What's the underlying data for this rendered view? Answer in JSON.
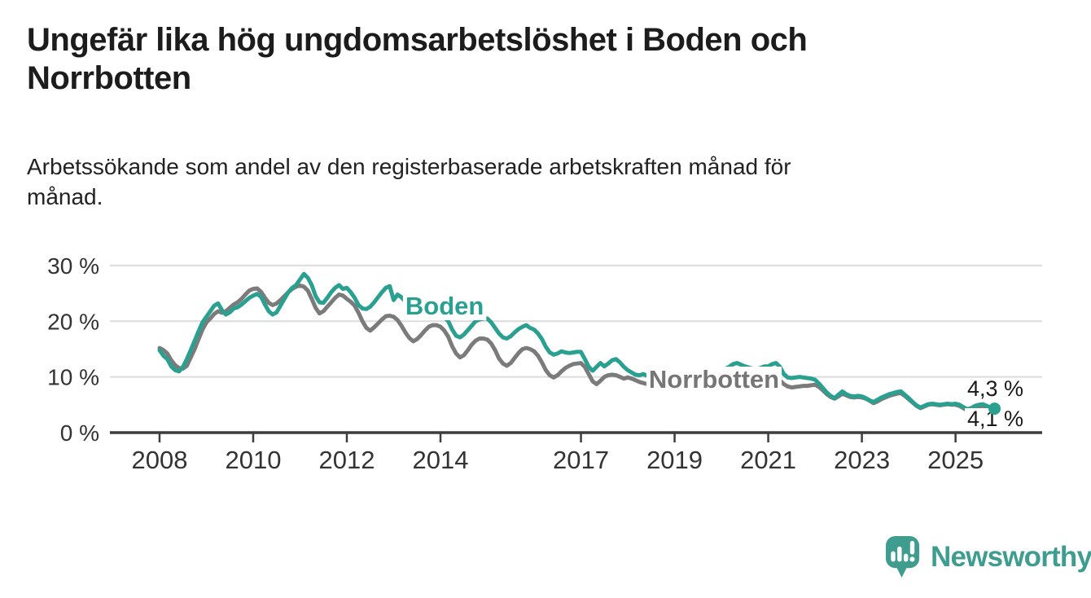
{
  "header": {
    "title": "Ungefär lika hög ungdomsarbetslöshet i Boden och\nNorrbotten",
    "subtitle": "Arbetssökande som andel av den registerbaserade arbetskraften månad för\nmånad."
  },
  "footer": {
    "brand": "Newsworthy",
    "brand_color": "#3e9d8f"
  },
  "chart_data": {
    "type": "line",
    "title": "Ungefär lika hög ungdomsarbetslöshet i Boden och Norrbotten",
    "xlabel": "",
    "ylabel": "Arbetssökande som andel av den registerbaserade arbetskraften (%)",
    "x_unit": "månad (decimalår)",
    "xlim": [
      2006.94,
      2026.85
    ],
    "ylim": [
      0,
      31.6
    ],
    "grid": "horizontal",
    "legend_position": "inline-labels",
    "y_ticks": [
      {
        "value": 30,
        "label": "30 %"
      },
      {
        "value": 20,
        "label": "20 %"
      },
      {
        "value": 10,
        "label": "10 %"
      },
      {
        "value": 0,
        "label": "0 %"
      }
    ],
    "x_ticks": [
      {
        "value": 2008,
        "label": "2008"
      },
      {
        "value": 2010,
        "label": "2010"
      },
      {
        "value": 2012,
        "label": "2012"
      },
      {
        "value": 2014,
        "label": "2014"
      },
      {
        "value": 2017,
        "label": "2017"
      },
      {
        "value": 2019,
        "label": "2019"
      },
      {
        "value": 2021,
        "label": "2021"
      },
      {
        "value": 2023,
        "label": "2023"
      },
      {
        "value": 2025,
        "label": "2025"
      }
    ],
    "style": {
      "grid_color": "#dcdcdc",
      "axis_color": "#3d3d3d",
      "axis_text_color": "#333333",
      "line_width": 5,
      "end_dot_radius": 7.5
    },
    "series": [
      {
        "name": "Norrbotten",
        "color": "#7b7b7b",
        "start_year": 2008,
        "points_per_year": 12,
        "last_value_label": "4,1 %",
        "values": [
          15.2,
          14.8,
          14.2,
          13.0,
          12.1,
          11.6,
          11.5,
          12.0,
          13.5,
          15.0,
          16.8,
          18.5,
          19.8,
          20.5,
          21.3,
          21.8,
          21.5,
          21.8,
          22.4,
          23.0,
          23.4,
          24.0,
          24.8,
          25.5,
          25.8,
          25.9,
          25.3,
          24.2,
          23.3,
          22.9,
          23.2,
          23.8,
          24.5,
          25.2,
          25.8,
          26.2,
          26.4,
          26.2,
          25.5,
          24.0,
          22.4,
          21.4,
          21.8,
          22.6,
          23.4,
          24.2,
          24.8,
          24.6,
          24.0,
          23.5,
          22.8,
          21.5,
          20.0,
          18.8,
          18.3,
          18.9,
          19.6,
          20.3,
          20.9,
          21.0,
          20.8,
          20.2,
          19.2,
          18.0,
          17.0,
          16.4,
          16.8,
          17.5,
          18.3,
          19.0,
          19.3,
          19.3,
          19.0,
          18.3,
          17.2,
          15.5,
          14.2,
          13.5,
          13.9,
          14.8,
          15.8,
          16.5,
          16.9,
          16.9,
          16.7,
          16.0,
          14.8,
          13.3,
          12.4,
          12.0,
          12.5,
          13.4,
          14.3,
          15.0,
          15.2,
          15.0,
          14.6,
          13.8,
          12.6,
          11.2,
          10.3,
          9.9,
          10.3,
          11.0,
          11.6,
          12.0,
          12.3,
          12.4,
          12.5,
          11.8,
          10.5,
          9.2,
          8.7,
          9.3,
          10.0,
          10.3,
          10.4,
          10.3,
          10.0,
          9.7,
          9.9,
          9.7,
          9.4,
          9.1,
          8.9,
          8.7,
          8.8,
          9.0,
          9.1,
          9.0,
          8.9,
          8.8,
          8.8,
          8.9,
          8.8,
          8.6,
          8.5,
          8.4,
          8.5,
          8.6,
          8.7,
          8.8,
          8.9,
          9.0,
          9.2,
          9.4,
          9.8,
          10.4,
          10.6,
          10.4,
          10.1,
          9.9,
          9.7,
          9.6,
          9.7,
          9.9,
          10.0,
          10.2,
          10.0,
          9.4,
          8.7,
          8.3,
          8.1,
          8.2,
          8.3,
          8.4,
          8.4,
          8.5,
          8.6,
          8.2,
          7.6,
          6.9,
          6.4,
          6.1,
          6.5,
          7.0,
          6.7,
          6.4,
          6.3,
          6.4,
          6.3,
          6.1,
          5.7,
          5.3,
          5.6,
          6.0,
          6.3,
          6.6,
          6.8,
          7.0,
          7.1,
          6.6,
          6.0,
          5.4,
          4.8,
          4.4,
          4.7,
          5.0,
          5.1,
          5.0,
          4.9,
          5.0,
          5.1,
          5.0,
          5.0,
          4.8,
          4.4,
          4.0,
          4.2,
          4.5,
          4.7,
          4.8,
          4.5,
          4.2,
          4.1
        ]
      },
      {
        "name": "Boden",
        "color": "#2aa091",
        "start_year": 2008,
        "points_per_year": 12,
        "last_value_label": "4,3 %",
        "values": [
          14.8,
          13.8,
          13.2,
          11.9,
          11.2,
          11.0,
          11.8,
          13.2,
          14.8,
          16.5,
          18.2,
          19.8,
          20.8,
          21.8,
          22.8,
          23.2,
          22.0,
          21.2,
          21.6,
          22.3,
          22.5,
          23.0,
          23.6,
          24.2,
          24.6,
          24.9,
          24.4,
          23.0,
          21.8,
          21.2,
          21.6,
          22.8,
          24.0,
          25.2,
          26.0,
          26.5,
          27.5,
          28.5,
          27.8,
          26.5,
          24.5,
          23.4,
          23.3,
          24.2,
          25.2,
          26.0,
          26.5,
          25.8,
          26.0,
          25.2,
          24.2,
          22.9,
          22.3,
          22.2,
          22.6,
          23.4,
          24.3,
          25.2,
          26.0,
          26.3,
          23.8,
          24.8,
          24.3,
          23.5,
          22.5,
          21.8,
          21.5,
          21.8,
          22.2,
          22.0,
          21.5,
          21.0,
          21.0,
          20.7,
          20.0,
          18.5,
          17.4,
          17.1,
          17.6,
          18.4,
          19.2,
          20.0,
          20.3,
          20.5,
          20.5,
          19.8,
          18.8,
          17.8,
          17.1,
          16.9,
          17.3,
          18.0,
          18.6,
          19.0,
          19.3,
          18.8,
          18.5,
          17.8,
          16.8,
          15.4,
          14.4,
          14.0,
          14.2,
          14.6,
          14.4,
          14.3,
          14.4,
          14.5,
          14.5,
          13.2,
          11.8,
          11.1,
          11.8,
          12.5,
          11.9,
          12.4,
          13.0,
          13.2,
          12.6,
          11.8,
          11.2,
          10.8,
          10.4,
          10.3,
          10.5,
          10.2,
          10.4,
          10.6,
          10.5,
          10.3,
          10.4,
          10.5,
          10.6,
          10.8,
          10.7,
          10.5,
          10.4,
          10.3,
          10.5,
          10.7,
          10.8,
          10.9,
          11.0,
          11.1,
          11.3,
          11.5,
          11.8,
          12.3,
          12.5,
          12.2,
          11.9,
          11.7,
          11.5,
          11.4,
          11.6,
          11.9,
          11.9,
          12.3,
          12.5,
          11.8,
          10.5,
          9.9,
          9.8,
          9.9,
          10.0,
          9.9,
          9.8,
          9.7,
          9.5,
          8.8,
          8.0,
          7.2,
          6.6,
          6.2,
          6.8,
          7.4,
          6.9,
          6.6,
          6.5,
          6.6,
          6.5,
          6.2,
          5.8,
          5.5,
          5.9,
          6.3,
          6.6,
          6.9,
          7.1,
          7.3,
          7.4,
          6.8,
          6.2,
          5.5,
          4.9,
          4.5,
          4.8,
          5.1,
          5.2,
          5.1,
          5.0,
          5.1,
          5.2,
          5.1,
          5.2,
          5.0,
          4.6,
          4.2,
          4.4,
          4.8,
          5.0,
          5.1,
          4.8,
          4.5,
          4.3
        ]
      }
    ],
    "end_dot": {
      "series": "Boden"
    },
    "annotations": [
      {
        "name": "series-label-boden",
        "text": "Boden",
        "year": 2013.25,
        "value": 21.2,
        "anchor": "start",
        "size": 31,
        "weight": "bold",
        "color": "#2aa091"
      },
      {
        "name": "series-label-norrbotten",
        "text": "Norrbotten",
        "year": 2018.45,
        "value": 8.05,
        "anchor": "start",
        "size": 31,
        "weight": "bold",
        "color": "#767676"
      },
      {
        "name": "end-value-label-boden",
        "text": "4,3 %",
        "year": 2026.45,
        "value": 6.58,
        "anchor": "end",
        "size": 27,
        "weight": "normal",
        "color": "#1a1a1a"
      },
      {
        "name": "end-value-label-norrbotten",
        "text": "4,1 %",
        "year": 2026.45,
        "value": 1.17,
        "anchor": "end",
        "size": 27,
        "weight": "normal",
        "color": "#1a1a1a"
      }
    ]
  }
}
